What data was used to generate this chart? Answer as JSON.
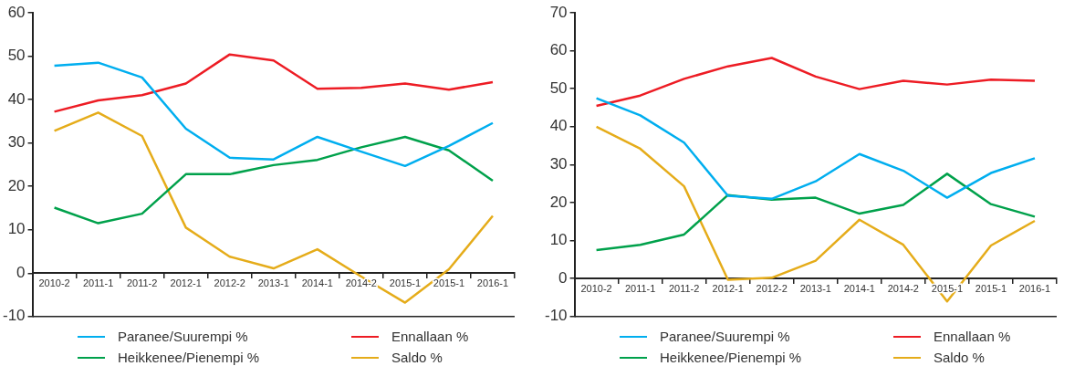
{
  "chart_data": [
    {
      "type": "line",
      "categories": [
        "2010-2",
        "2011-1",
        "2011-2",
        "2012-1",
        "2012-2",
        "2013-1",
        "2014-1",
        "2014-2",
        "2015-1",
        "2015-1",
        "2016-1"
      ],
      "ylim": [
        -10,
        60
      ],
      "yticks": [
        -10,
        0,
        10,
        20,
        30,
        40,
        50,
        60
      ],
      "grid": false,
      "legend": "bottom",
      "series": [
        {
          "name": "Paranee/Suurempi %",
          "color": "#00aeef",
          "values": [
            47.8,
            48.5,
            45.1,
            33.3,
            26.6,
            26.2,
            31.4,
            28,
            24.7,
            29.3,
            34.6
          ]
        },
        {
          "name": "Ennallaan %",
          "color": "#ed1c24",
          "values": [
            37.2,
            39.8,
            41,
            43.7,
            50.4,
            49,
            42.5,
            42.7,
            43.7,
            42.3,
            44
          ]
        },
        {
          "name": "Heikkenee/Pienempi %",
          "color": "#00a14b",
          "values": [
            15.1,
            11.5,
            13.7,
            22.8,
            22.8,
            24.9,
            26.1,
            29,
            31.4,
            28.3,
            21.3
          ]
        },
        {
          "name": "Saldo %",
          "color": "#e5ac1a",
          "values": [
            32.8,
            37,
            31.6,
            10.5,
            3.8,
            1.1,
            5.5,
            -0.8,
            -6.8,
            0.9,
            13.2
          ]
        }
      ]
    },
    {
      "type": "line",
      "categories": [
        "2010-2",
        "2011-1",
        "2011-2",
        "2012-1",
        "2012-2",
        "2013-1",
        "2014-1",
        "2014-2",
        "2015-1",
        "2015-1",
        "2016-1"
      ],
      "ylim": [
        -10,
        70
      ],
      "yticks": [
        -10,
        0,
        10,
        20,
        30,
        40,
        50,
        60,
        70
      ],
      "grid": false,
      "legend": "bottom",
      "series": [
        {
          "name": "Paranee/Suurempi %",
          "color": "#00aeef",
          "values": [
            47.5,
            43,
            35.8,
            21.8,
            21,
            25.6,
            32.8,
            28.4,
            21.3,
            27.8,
            31.7
          ]
        },
        {
          "name": "Ennallaan %",
          "color": "#ed1c24",
          "values": [
            45.5,
            48.2,
            52.6,
            55.9,
            58.1,
            53.2,
            49.9,
            52.1,
            51.1,
            52.4,
            52.1
          ]
        },
        {
          "name": "Heikkenee/Pienempi %",
          "color": "#00a14b",
          "values": [
            7.5,
            8.9,
            11.6,
            22,
            20.8,
            21.3,
            17.1,
            19.4,
            27.6,
            19.6,
            16.3
          ]
        },
        {
          "name": "Saldo %",
          "color": "#e5ac1a",
          "values": [
            40,
            34.2,
            24.3,
            -0.3,
            0.2,
            4.7,
            15.5,
            8.9,
            -6,
            8.7,
            15.2
          ]
        }
      ]
    }
  ]
}
